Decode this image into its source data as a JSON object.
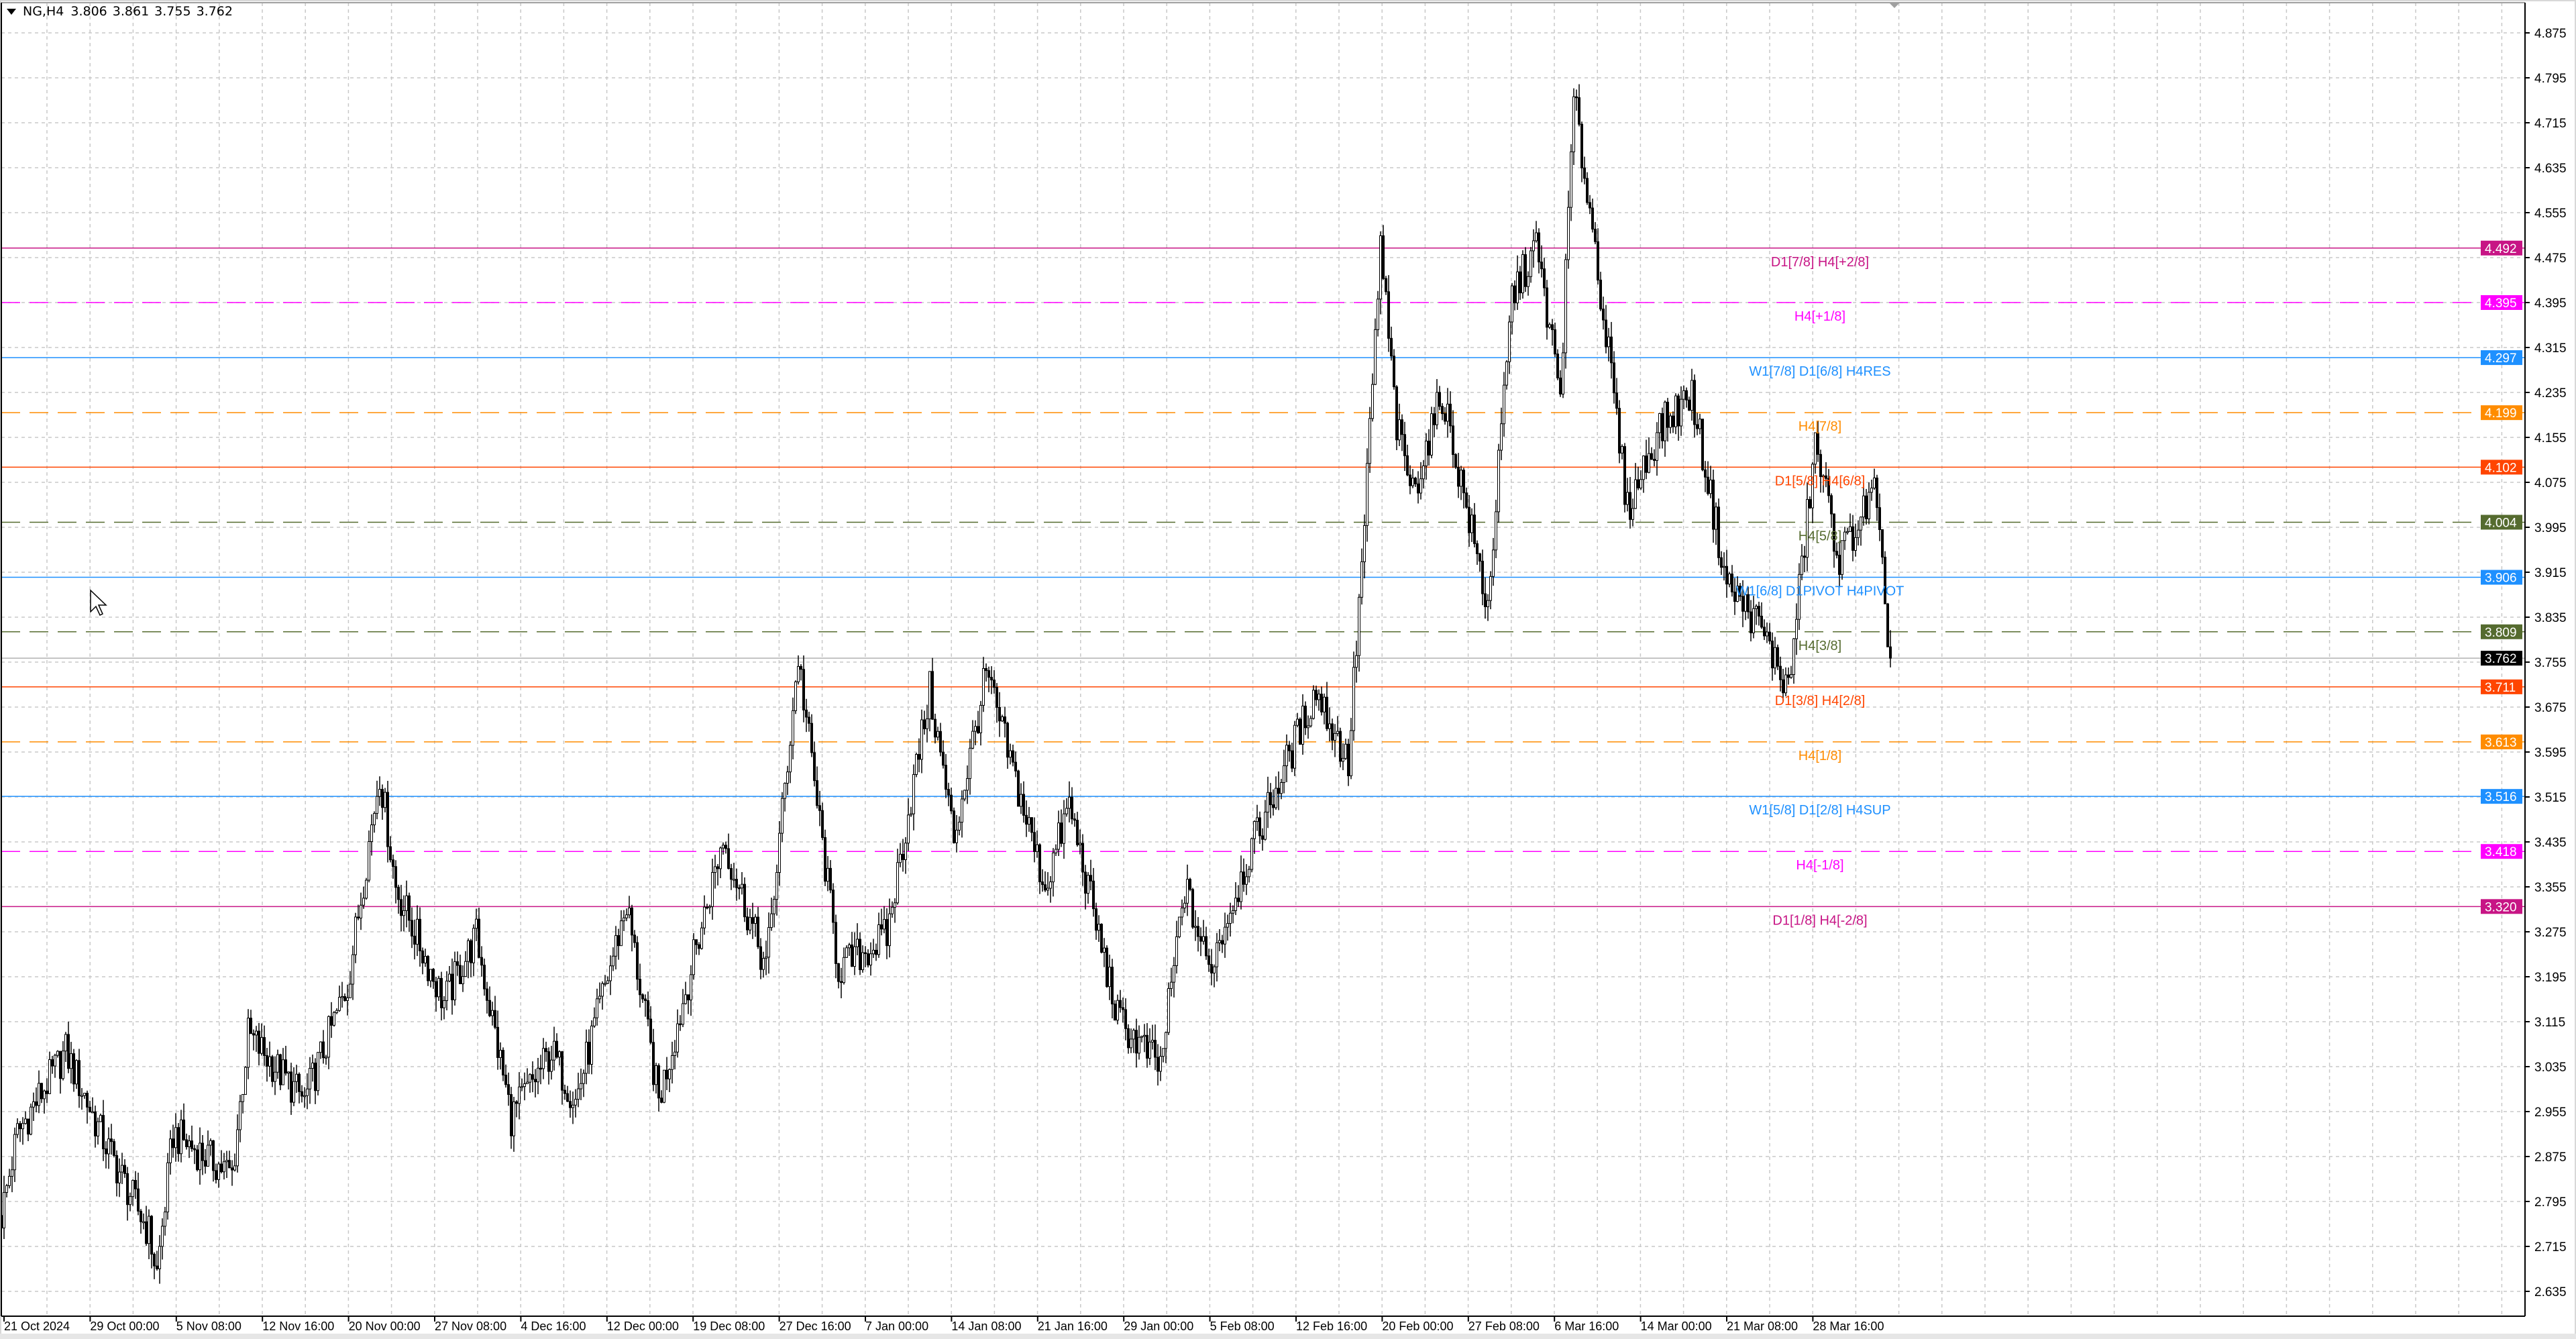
{
  "header": {
    "symbol": "NG,H4",
    "open": "3.806",
    "high": "3.861",
    "low": "3.755",
    "close": "3.762"
  },
  "chart_data": {
    "type": "candlestick",
    "symbol": "NG",
    "timeframe": "H4",
    "ylim": [
      2.6,
      4.92
    ],
    "grid": true,
    "y_ticks": [
      "4.875",
      "4.795",
      "4.715",
      "4.635",
      "4.555",
      "4.475",
      "4.395",
      "4.315",
      "4.235",
      "4.155",
      "4.075",
      "3.995",
      "3.915",
      "3.835",
      "3.755",
      "3.675",
      "3.595",
      "3.515",
      "3.435",
      "3.355",
      "3.275",
      "3.195",
      "3.115",
      "3.035",
      "2.955",
      "2.875",
      "2.795",
      "2.715",
      "2.635"
    ],
    "x_ticks": [
      "21 Oct 2024",
      "29 Oct 00:00",
      "5 Nov 08:00",
      "12 Nov 16:00",
      "20 Nov 00:00",
      "27 Nov 08:00",
      "4 Dec 16:00",
      "12 Dec 00:00",
      "19 Dec 08:00",
      "27 Dec 16:00",
      "7 Jan 00:00",
      "14 Jan 08:00",
      "21 Jan 16:00",
      "29 Jan 00:00",
      "5 Feb 08:00",
      "12 Feb 16:00",
      "20 Feb 00:00",
      "27 Feb 08:00",
      "6 Mar 16:00",
      "14 Mar 00:00",
      "21 Mar 08:00",
      "28 Mar 16:00"
    ],
    "price_path": [
      {
        "bar": 0,
        "price": 2.77
      },
      {
        "bar": 6,
        "price": 2.916
      },
      {
        "bar": 24,
        "price": 3.062
      },
      {
        "bar": 37,
        "price": 2.916
      },
      {
        "bar": 55,
        "price": 2.74
      },
      {
        "bar": 58,
        "price": 2.667
      },
      {
        "bar": 64,
        "price": 2.916
      },
      {
        "bar": 86,
        "price": 2.843
      },
      {
        "bar": 92,
        "price": 3.091
      },
      {
        "bar": 113,
        "price": 2.974
      },
      {
        "bar": 129,
        "price": 3.179
      },
      {
        "bar": 141,
        "price": 3.559
      },
      {
        "bar": 147,
        "price": 3.355
      },
      {
        "bar": 165,
        "price": 3.15
      },
      {
        "bar": 177,
        "price": 3.267
      },
      {
        "bar": 190,
        "price": 2.945
      },
      {
        "bar": 205,
        "price": 3.062
      },
      {
        "bar": 214,
        "price": 2.974
      },
      {
        "bar": 233,
        "price": 3.325
      },
      {
        "bar": 245,
        "price": 2.974
      },
      {
        "bar": 269,
        "price": 3.442
      },
      {
        "bar": 285,
        "price": 3.208
      },
      {
        "bar": 297,
        "price": 3.764
      },
      {
        "bar": 312,
        "price": 3.208
      },
      {
        "bar": 330,
        "price": 3.267
      },
      {
        "bar": 346,
        "price": 3.705
      },
      {
        "bar": 355,
        "price": 3.442
      },
      {
        "bar": 367,
        "price": 3.734
      },
      {
        "bar": 389,
        "price": 3.355
      },
      {
        "bar": 398,
        "price": 3.501
      },
      {
        "bar": 416,
        "price": 3.121
      },
      {
        "bar": 432,
        "price": 3.033
      },
      {
        "bar": 441,
        "price": 3.355
      },
      {
        "bar": 450,
        "price": 3.208
      },
      {
        "bar": 465,
        "price": 3.413
      },
      {
        "bar": 490,
        "price": 3.705
      },
      {
        "bar": 502,
        "price": 3.574
      },
      {
        "bar": 508,
        "price": 3.998
      },
      {
        "bar": 514,
        "price": 4.495
      },
      {
        "bar": 520,
        "price": 4.173
      },
      {
        "bar": 526,
        "price": 4.057
      },
      {
        "bar": 537,
        "price": 4.232
      },
      {
        "bar": 554,
        "price": 3.852
      },
      {
        "bar": 563,
        "price": 4.407
      },
      {
        "bar": 572,
        "price": 4.495
      },
      {
        "bar": 581,
        "price": 4.232
      },
      {
        "bar": 586,
        "price": 4.758
      },
      {
        "bar": 594,
        "price": 4.495
      },
      {
        "bar": 606,
        "price": 4.027
      },
      {
        "bar": 618,
        "price": 4.173
      },
      {
        "bar": 630,
        "price": 4.232
      },
      {
        "bar": 643,
        "price": 3.895
      },
      {
        "bar": 655,
        "price": 3.822
      },
      {
        "bar": 666,
        "price": 3.705
      },
      {
        "bar": 676,
        "price": 4.144
      },
      {
        "bar": 685,
        "price": 3.94
      },
      {
        "bar": 698,
        "price": 4.057
      },
      {
        "bar": 704,
        "price": 3.762
      }
    ],
    "current_price": {
      "value": "3.762",
      "color": "#000000"
    },
    "levels": [
      {
        "price": "4.492",
        "label": "D1[7/8] H4[+2/8]",
        "color": "#C71585",
        "dashed": false
      },
      {
        "price": "4.395",
        "label": "H4[+1/8]",
        "color": "#FF00FF",
        "dashed": true
      },
      {
        "price": "4.297",
        "label": "W1[7/8] D1[6/8] H4RES",
        "color": "#1E90FF",
        "dashed": false
      },
      {
        "price": "4.199",
        "label": "H4[7/8]",
        "color": "#FF8C00",
        "dashed": true
      },
      {
        "price": "4.102",
        "label": "D1[5/8] H4[6/8]",
        "color": "#FF4500",
        "dashed": false
      },
      {
        "price": "4.004",
        "label": "H4[5/8]",
        "color": "#556B2F",
        "dashed": true
      },
      {
        "price": "3.906",
        "label": "W1[6/8] D1PIVOT H4PIVOT",
        "color": "#1E90FF",
        "dashed": false
      },
      {
        "price": "3.809",
        "label": "H4[3/8]",
        "color": "#556B2F",
        "dashed": true
      },
      {
        "price": "3.711",
        "label": "D1[3/8] H4[2/8]",
        "color": "#FF4500",
        "dashed": false
      },
      {
        "price": "3.613",
        "label": "H4[1/8]",
        "color": "#FF8C00",
        "dashed": true
      },
      {
        "price": "3.516",
        "label": "W1[5/8] D1[2/8] H4SUP",
        "color": "#1E90FF",
        "dashed": false
      },
      {
        "price": "3.418",
        "label": "H4[-1/8]",
        "color": "#FF00FF",
        "dashed": true
      },
      {
        "price": "3.320",
        "label": "D1[1/8] H4[-2/8]",
        "color": "#C71585",
        "dashed": false
      }
    ]
  }
}
